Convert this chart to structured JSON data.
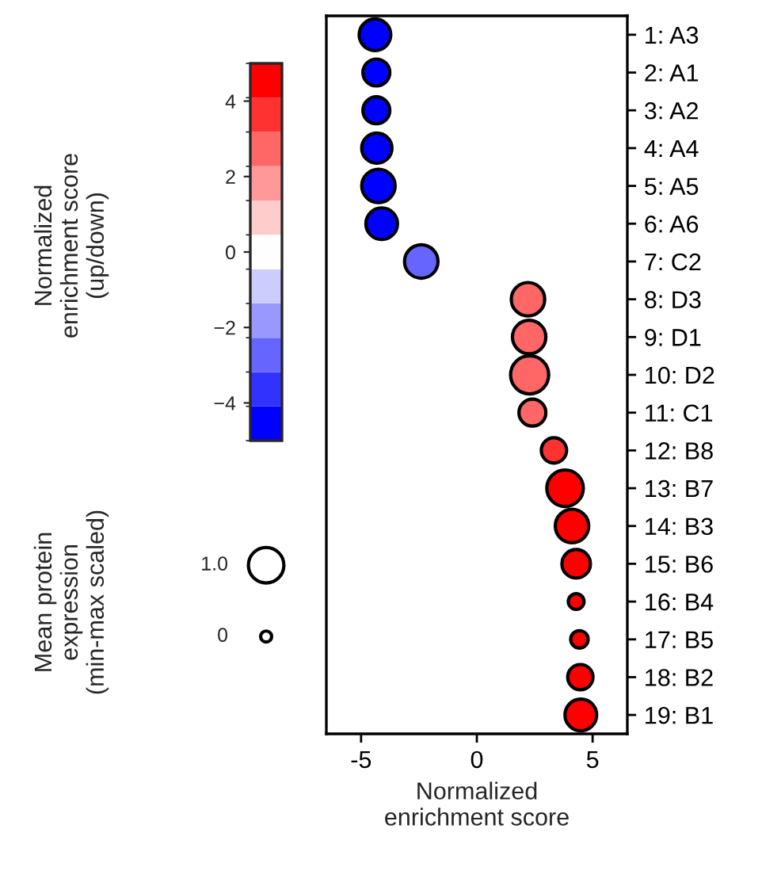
{
  "chart_data": {
    "type": "bubble",
    "orientation": "horizontal",
    "categories": [
      "1: A3",
      "2: A1",
      "3: A2",
      "4: A4",
      "5: A5",
      "6: A6",
      "7: C2",
      "8: D3",
      "9: D1",
      "10: D2",
      "11: C1",
      "12: B8",
      "13: B7",
      "14: B3",
      "15: B6",
      "16: B4",
      "17: B5",
      "18: B2",
      "19: B1"
    ],
    "values": [
      -4.4,
      -4.34,
      -4.34,
      -4.32,
      -4.25,
      -4.11,
      -2.4,
      2.21,
      2.26,
      2.28,
      2.4,
      3.33,
      3.81,
      4.11,
      4.29,
      4.29,
      4.43,
      4.47,
      4.49
    ],
    "sizes": [
      0.69,
      0.5,
      0.5,
      0.63,
      0.77,
      0.69,
      0.77,
      0.77,
      0.77,
      1,
      0.5,
      0.44,
      0.92,
      0.77,
      0.56,
      0.17,
      0.21,
      0.44,
      0.69
    ],
    "cvalues": [
      -4.5,
      -4.5,
      -4.5,
      -4.5,
      -4.5,
      -4.5,
      -2.7,
      2.7,
      2.7,
      2.7,
      2.7,
      3.6,
      4.5,
      4.5,
      4.5,
      4.5,
      4.5,
      4.5,
      4.5
    ],
    "annotations": [
      "1.0",
      "0"
    ],
    "legend_title": "Mean protein\nexpression\n(min-max scaled)",
    "clabel": "Normalized\nenrichment score\n(up/down)",
    "clim": [
      -5,
      5
    ],
    "cticks": [
      -4,
      -2,
      0,
      2,
      4
    ],
    "xlabel": "Normalized\nenrichment score",
    "xlim": [
      -6.5,
      6.5
    ],
    "xticks": [
      -5,
      0,
      5
    ],
    "grid": false
  }
}
